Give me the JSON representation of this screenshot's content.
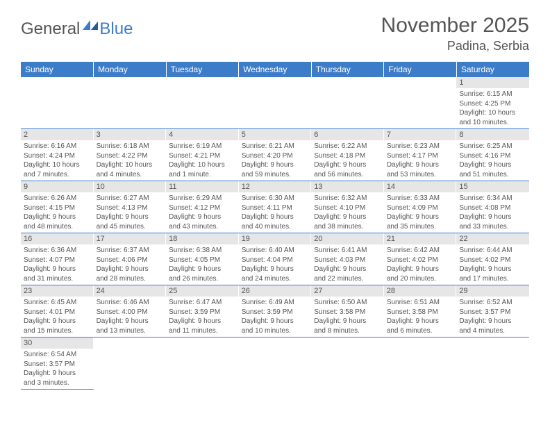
{
  "logo": {
    "general": "General",
    "blue": "Blue"
  },
  "title": "November 2025",
  "location": "Padina, Serbia",
  "headers": [
    "Sunday",
    "Monday",
    "Tuesday",
    "Wednesday",
    "Thursday",
    "Friday",
    "Saturday"
  ],
  "colors": {
    "header_bg": "#3d7cc9",
    "header_text": "#ffffff",
    "daynum_bg": "#e6e6e6",
    "text": "#555555",
    "row_border": "#3d7cc9"
  },
  "weeks": [
    [
      null,
      null,
      null,
      null,
      null,
      null,
      {
        "n": "1",
        "sr": "Sunrise: 6:15 AM",
        "ss": "Sunset: 4:25 PM",
        "d1": "Daylight: 10 hours",
        "d2": "and 10 minutes."
      }
    ],
    [
      {
        "n": "2",
        "sr": "Sunrise: 6:16 AM",
        "ss": "Sunset: 4:24 PM",
        "d1": "Daylight: 10 hours",
        "d2": "and 7 minutes."
      },
      {
        "n": "3",
        "sr": "Sunrise: 6:18 AM",
        "ss": "Sunset: 4:22 PM",
        "d1": "Daylight: 10 hours",
        "d2": "and 4 minutes."
      },
      {
        "n": "4",
        "sr": "Sunrise: 6:19 AM",
        "ss": "Sunset: 4:21 PM",
        "d1": "Daylight: 10 hours",
        "d2": "and 1 minute."
      },
      {
        "n": "5",
        "sr": "Sunrise: 6:21 AM",
        "ss": "Sunset: 4:20 PM",
        "d1": "Daylight: 9 hours",
        "d2": "and 59 minutes."
      },
      {
        "n": "6",
        "sr": "Sunrise: 6:22 AM",
        "ss": "Sunset: 4:18 PM",
        "d1": "Daylight: 9 hours",
        "d2": "and 56 minutes."
      },
      {
        "n": "7",
        "sr": "Sunrise: 6:23 AM",
        "ss": "Sunset: 4:17 PM",
        "d1": "Daylight: 9 hours",
        "d2": "and 53 minutes."
      },
      {
        "n": "8",
        "sr": "Sunrise: 6:25 AM",
        "ss": "Sunset: 4:16 PM",
        "d1": "Daylight: 9 hours",
        "d2": "and 51 minutes."
      }
    ],
    [
      {
        "n": "9",
        "sr": "Sunrise: 6:26 AM",
        "ss": "Sunset: 4:15 PM",
        "d1": "Daylight: 9 hours",
        "d2": "and 48 minutes."
      },
      {
        "n": "10",
        "sr": "Sunrise: 6:27 AM",
        "ss": "Sunset: 4:13 PM",
        "d1": "Daylight: 9 hours",
        "d2": "and 45 minutes."
      },
      {
        "n": "11",
        "sr": "Sunrise: 6:29 AM",
        "ss": "Sunset: 4:12 PM",
        "d1": "Daylight: 9 hours",
        "d2": "and 43 minutes."
      },
      {
        "n": "12",
        "sr": "Sunrise: 6:30 AM",
        "ss": "Sunset: 4:11 PM",
        "d1": "Daylight: 9 hours",
        "d2": "and 40 minutes."
      },
      {
        "n": "13",
        "sr": "Sunrise: 6:32 AM",
        "ss": "Sunset: 4:10 PM",
        "d1": "Daylight: 9 hours",
        "d2": "and 38 minutes."
      },
      {
        "n": "14",
        "sr": "Sunrise: 6:33 AM",
        "ss": "Sunset: 4:09 PM",
        "d1": "Daylight: 9 hours",
        "d2": "and 35 minutes."
      },
      {
        "n": "15",
        "sr": "Sunrise: 6:34 AM",
        "ss": "Sunset: 4:08 PM",
        "d1": "Daylight: 9 hours",
        "d2": "and 33 minutes."
      }
    ],
    [
      {
        "n": "16",
        "sr": "Sunrise: 6:36 AM",
        "ss": "Sunset: 4:07 PM",
        "d1": "Daylight: 9 hours",
        "d2": "and 31 minutes."
      },
      {
        "n": "17",
        "sr": "Sunrise: 6:37 AM",
        "ss": "Sunset: 4:06 PM",
        "d1": "Daylight: 9 hours",
        "d2": "and 28 minutes."
      },
      {
        "n": "18",
        "sr": "Sunrise: 6:38 AM",
        "ss": "Sunset: 4:05 PM",
        "d1": "Daylight: 9 hours",
        "d2": "and 26 minutes."
      },
      {
        "n": "19",
        "sr": "Sunrise: 6:40 AM",
        "ss": "Sunset: 4:04 PM",
        "d1": "Daylight: 9 hours",
        "d2": "and 24 minutes."
      },
      {
        "n": "20",
        "sr": "Sunrise: 6:41 AM",
        "ss": "Sunset: 4:03 PM",
        "d1": "Daylight: 9 hours",
        "d2": "and 22 minutes."
      },
      {
        "n": "21",
        "sr": "Sunrise: 6:42 AM",
        "ss": "Sunset: 4:02 PM",
        "d1": "Daylight: 9 hours",
        "d2": "and 20 minutes."
      },
      {
        "n": "22",
        "sr": "Sunrise: 6:44 AM",
        "ss": "Sunset: 4:02 PM",
        "d1": "Daylight: 9 hours",
        "d2": "and 17 minutes."
      }
    ],
    [
      {
        "n": "23",
        "sr": "Sunrise: 6:45 AM",
        "ss": "Sunset: 4:01 PM",
        "d1": "Daylight: 9 hours",
        "d2": "and 15 minutes."
      },
      {
        "n": "24",
        "sr": "Sunrise: 6:46 AM",
        "ss": "Sunset: 4:00 PM",
        "d1": "Daylight: 9 hours",
        "d2": "and 13 minutes."
      },
      {
        "n": "25",
        "sr": "Sunrise: 6:47 AM",
        "ss": "Sunset: 3:59 PM",
        "d1": "Daylight: 9 hours",
        "d2": "and 11 minutes."
      },
      {
        "n": "26",
        "sr": "Sunrise: 6:49 AM",
        "ss": "Sunset: 3:59 PM",
        "d1": "Daylight: 9 hours",
        "d2": "and 10 minutes."
      },
      {
        "n": "27",
        "sr": "Sunrise: 6:50 AM",
        "ss": "Sunset: 3:58 PM",
        "d1": "Daylight: 9 hours",
        "d2": "and 8 minutes."
      },
      {
        "n": "28",
        "sr": "Sunrise: 6:51 AM",
        "ss": "Sunset: 3:58 PM",
        "d1": "Daylight: 9 hours",
        "d2": "and 6 minutes."
      },
      {
        "n": "29",
        "sr": "Sunrise: 6:52 AM",
        "ss": "Sunset: 3:57 PM",
        "d1": "Daylight: 9 hours",
        "d2": "and 4 minutes."
      }
    ],
    [
      {
        "n": "30",
        "sr": "Sunrise: 6:54 AM",
        "ss": "Sunset: 3:57 PM",
        "d1": "Daylight: 9 hours",
        "d2": "and 3 minutes."
      },
      null,
      null,
      null,
      null,
      null,
      null
    ]
  ]
}
